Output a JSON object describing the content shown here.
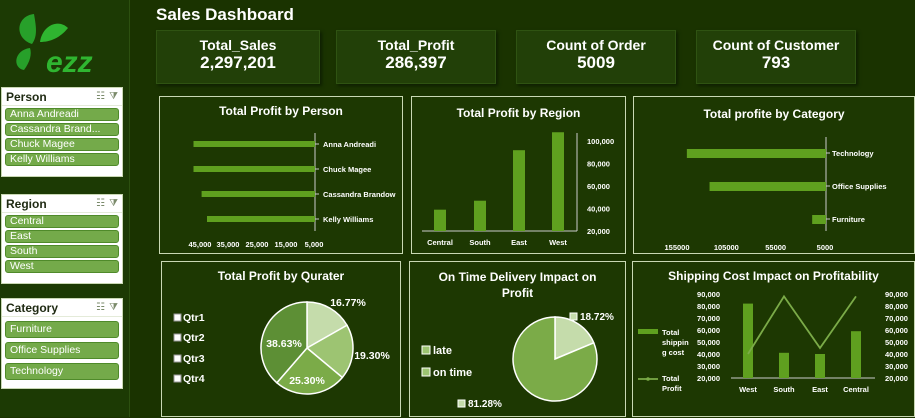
{
  "header": {
    "title": "Sales Dashboard",
    "logo_text": "ezz"
  },
  "colors": {
    "background": "#1a3300",
    "accent": "#5fa01f",
    "pie1": "#5d8f35",
    "pie2": "#7bab48",
    "pie3": "#9dc472",
    "pie4": "#c5dcab"
  },
  "kpis": [
    {
      "label": "Total_Sales",
      "value": "2,297,201"
    },
    {
      "label": "Total_Profit",
      "value": "286,397"
    },
    {
      "label": "Count of Order",
      "value": "5009"
    },
    {
      "label": "Count of Customer",
      "value": "793"
    }
  ],
  "slicers": {
    "person": {
      "title": "Person",
      "items": [
        "Anna Andreadi",
        "Cassandra Brand...",
        "Chuck Magee",
        "Kelly Williams"
      ]
    },
    "region": {
      "title": "Region",
      "items": [
        "Central",
        "East",
        "South",
        "West"
      ]
    },
    "category": {
      "title": "Category",
      "items": [
        "Furniture",
        "Office Supplies",
        "Technology"
      ]
    }
  },
  "chart_data": [
    {
      "title": "Total Profit by Person",
      "type": "bar",
      "orientation": "horizontal",
      "x_reversed": true,
      "categories": [
        "Anna Andreadi",
        "Chuck Magee",
        "Cassandra Brandow",
        "Kelly Williams"
      ],
      "values": [
        45000,
        45000,
        42000,
        40000
      ],
      "xticks": [
        "45,000",
        "35,000",
        "25,000",
        "15,000",
        "5,000"
      ],
      "xlim": [
        0,
        50000
      ]
    },
    {
      "title": "Total Profit by Region",
      "type": "bar",
      "categories": [
        "Central",
        "South",
        "East",
        "West"
      ],
      "values": [
        39000,
        47000,
        92000,
        108000
      ],
      "yticks": [
        "100,000",
        "80,000",
        "60,000",
        "40,000",
        "20,000"
      ],
      "ylim": [
        20000,
        110000
      ]
    },
    {
      "title": "Total profite by Category",
      "type": "bar",
      "orientation": "horizontal",
      "x_reversed": true,
      "categories": [
        "Technology",
        "Office Supplies",
        "Furniture"
      ],
      "values": [
        145000,
        122000,
        18000
      ],
      "xticks": [
        "155000",
        "105000",
        "55000",
        "5000"
      ],
      "xlim": [
        5000,
        155000
      ]
    },
    {
      "title": "Total Profit by Qurater",
      "type": "pie",
      "labels": [
        "Qtr1",
        "Qtr2",
        "Qtr3",
        "Qtr4"
      ],
      "values": [
        16.77,
        19.3,
        25.3,
        38.63
      ],
      "data_labels": [
        "16.77%",
        "19.30%",
        "25.30%",
        "38.63%"
      ]
    },
    {
      "title": "On Time Delivery Impact on Profit",
      "type": "pie",
      "labels": [
        "late",
        "on time"
      ],
      "values": [
        18.72,
        81.28
      ],
      "data_labels": [
        "18.72%",
        "81.28%"
      ]
    },
    {
      "title": "Shipping Cost Impact on Profitability",
      "type": "bar",
      "categories": [
        "West",
        "South",
        "East",
        "Central"
      ],
      "series": [
        {
          "name": "Total shipping cost",
          "type": "bar",
          "values": [
            82000,
            41000,
            40000,
            59000
          ]
        },
        {
          "name": "Total Profit",
          "type": "line",
          "values": [
            40000,
            88000,
            45000,
            88000
          ]
        }
      ],
      "yticks": [
        "90,000",
        "80,000",
        "70,000",
        "60,000",
        "50,000",
        "40,000",
        "30,000",
        "20,000"
      ],
      "ylim": [
        20000,
        90000
      ],
      "legend": [
        "Total shippin g cost",
        "Total Profit"
      ]
    }
  ]
}
